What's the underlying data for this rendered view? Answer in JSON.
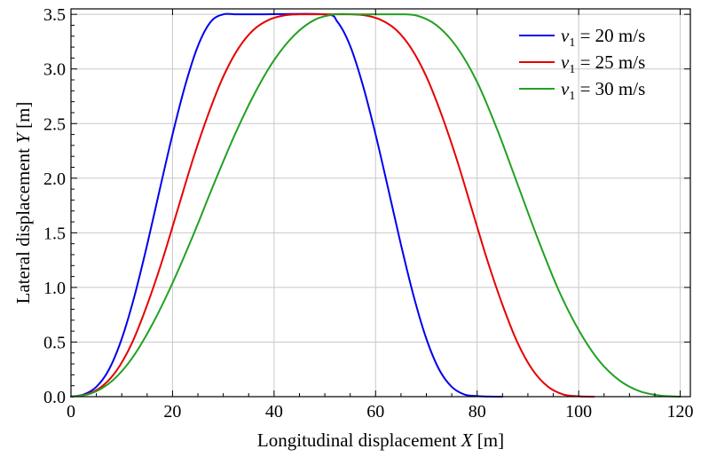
{
  "chart_data": {
    "type": "line",
    "xlabel": "Longitudinal displacement X [m]",
    "xlabel_parts": {
      "prefix": "Longitudinal displacement ",
      "var": "X",
      "unit": " [m]"
    },
    "ylabel": "Lateral displacement Y [m]",
    "ylabel_parts": {
      "prefix": "Lateral displacement ",
      "var": "Y",
      "unit": " [m]"
    },
    "xlim": [
      0,
      122
    ],
    "ylim": [
      0,
      3.55
    ],
    "x_ticks": [
      0,
      20,
      40,
      60,
      80,
      100,
      120
    ],
    "x_tick_labels": [
      "0",
      "20",
      "40",
      "60",
      "80",
      "100",
      "120"
    ],
    "y_ticks": [
      0,
      0.5,
      1.0,
      1.5,
      2.0,
      2.5,
      3.0,
      3.5
    ],
    "y_tick_labels": [
      "0.0",
      "0.5",
      "1.0",
      "1.5",
      "2.0",
      "2.5",
      "3.0",
      "3.5"
    ],
    "grid": true,
    "legend_position": "top-right",
    "series": [
      {
        "name": "v1 = 20 m/s",
        "name_parts": {
          "var": "v",
          "sub": "1",
          "rest": " = 20 m/s"
        },
        "color": "#0000ee",
        "x": [
          0,
          2.5,
          5,
          7.5,
          10,
          12.5,
          15,
          17.5,
          20,
          22.5,
          25,
          27.5,
          30,
          32.5,
          35,
          37.5,
          50,
          52.5,
          55,
          57.5,
          60,
          62.5,
          65,
          67.5,
          70,
          72.5,
          75,
          77.5,
          80,
          82.5,
          85
        ],
        "y": [
          0,
          0.02,
          0.09,
          0.25,
          0.53,
          0.92,
          1.39,
          1.9,
          2.4,
          2.85,
          3.21,
          3.43,
          3.5,
          3.5,
          3.5,
          3.5,
          3.5,
          3.43,
          3.21,
          2.85,
          2.4,
          1.9,
          1.39,
          0.92,
          0.53,
          0.25,
          0.09,
          0.02,
          0.005,
          0.001,
          0
        ]
      },
      {
        "name": "v1 = 25 m/s",
        "name_parts": {
          "var": "v",
          "sub": "1",
          "rest": " = 25 m/s"
        },
        "color": "#e60000",
        "x": [
          0,
          3,
          6,
          9,
          12,
          15,
          18,
          21,
          24,
          27,
          30,
          33,
          36,
          39,
          42,
          45,
          48,
          52,
          55,
          58,
          61,
          64,
          67,
          70,
          73,
          76,
          79,
          82,
          85,
          88,
          91,
          94,
          97,
          100,
          103
        ],
        "y": [
          0,
          0.02,
          0.09,
          0.24,
          0.49,
          0.84,
          1.25,
          1.71,
          2.17,
          2.58,
          2.93,
          3.19,
          3.36,
          3.45,
          3.49,
          3.5,
          3.5,
          3.5,
          3.5,
          3.49,
          3.45,
          3.36,
          3.19,
          2.93,
          2.58,
          2.17,
          1.71,
          1.25,
          0.84,
          0.49,
          0.24,
          0.09,
          0.02,
          0.003,
          0
        ]
      },
      {
        "name": "v1 = 30 m/s",
        "name_parts": {
          "var": "v",
          "sub": "1",
          "rest": " = 30 m/s"
        },
        "color": "#22a022",
        "x": [
          0,
          4,
          8,
          12,
          16,
          20,
          24,
          28,
          32,
          36,
          40,
          44,
          48,
          52,
          56,
          60,
          64,
          68,
          72,
          76,
          80,
          84,
          88,
          92,
          96,
          100,
          104,
          108,
          112,
          116,
          120
        ],
        "y": [
          0,
          0.03,
          0.14,
          0.35,
          0.66,
          1.04,
          1.47,
          1.93,
          2.37,
          2.76,
          3.08,
          3.31,
          3.45,
          3.5,
          3.5,
          3.5,
          3.5,
          3.49,
          3.4,
          3.2,
          2.88,
          2.44,
          1.94,
          1.44,
          0.98,
          0.61,
          0.33,
          0.15,
          0.05,
          0.01,
          0
        ]
      }
    ]
  }
}
